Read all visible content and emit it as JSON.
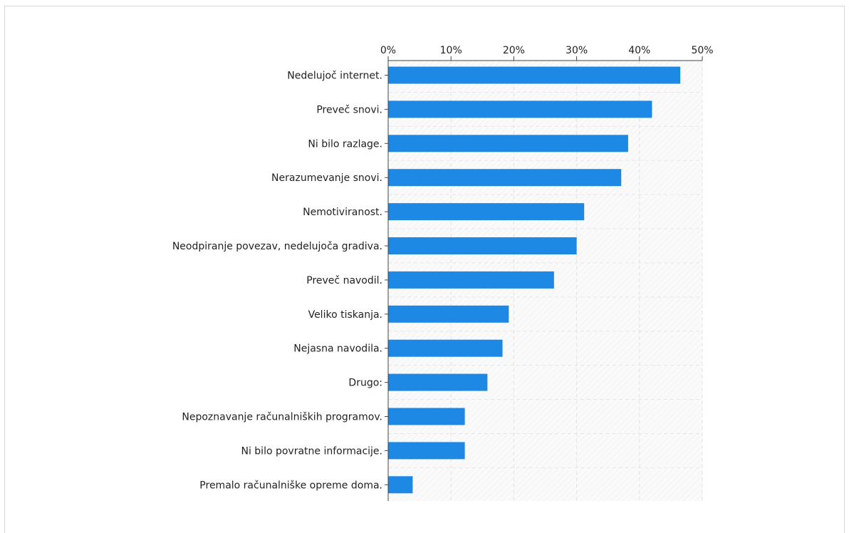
{
  "chart_data": {
    "type": "bar",
    "orientation": "horizontal",
    "title": "",
    "xlabel": "",
    "ylabel": "",
    "xlim": [
      0,
      50
    ],
    "x_tick_labels": [
      "0%",
      "10%",
      "20%",
      "30%",
      "40%",
      "50%"
    ],
    "x_axis_position": "top",
    "grid": true,
    "bar_color": "#1e88e5",
    "categories": [
      "Nedelujoč internet.",
      "Preveč snovi.",
      "Ni bilo razlage.",
      "Nerazumevanje snovi.",
      "Nemotiviranost.",
      "Neodpiranje povezav, nedelujoča gradiva.",
      "Preveč navodil.",
      "Veliko tiskanja.",
      "Nejasna navodila.",
      "Drugo:",
      "Nepoznavanje računalniških programov.",
      "Ni bilo povratne informacije.",
      "Premalo računalniške opreme doma."
    ],
    "values": [
      46.5,
      42.0,
      38.2,
      37.1,
      31.2,
      30.0,
      26.4,
      19.2,
      18.2,
      15.8,
      12.2,
      12.2,
      3.9
    ]
  }
}
